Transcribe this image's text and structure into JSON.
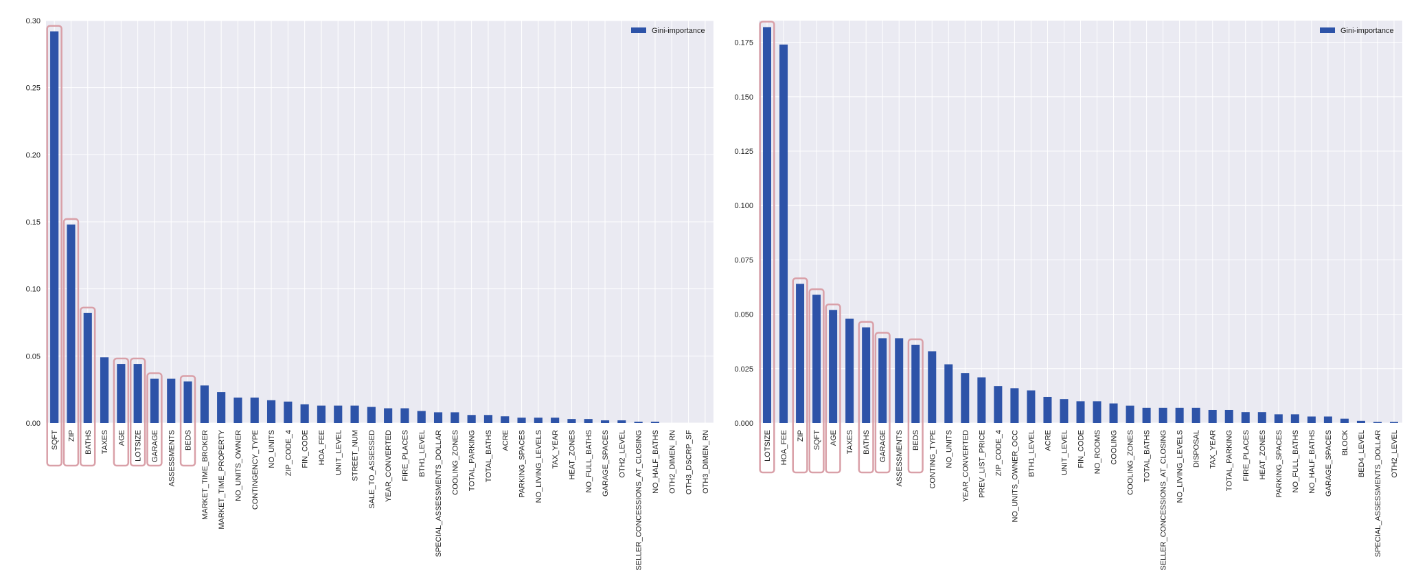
{
  "colors": {
    "plot_background": "#eaeaf2",
    "grid": "#ffffff",
    "bar": "#2d53a8",
    "highlight_box": "#d9a0a8"
  },
  "chart_data": [
    {
      "type": "bar",
      "legend": "Gini-importance",
      "legend_position": "top-right",
      "grid": true,
      "ylim": [
        0,
        0.3
      ],
      "yticks": [
        "0.00",
        "0.05",
        "0.10",
        "0.15",
        "0.20",
        "0.25",
        "0.30"
      ],
      "categories": [
        "SQFT",
        "ZIP",
        "BATHS",
        "TAXES",
        "AGE",
        "LOTSIZE",
        "GARAGE",
        "ASSESSMENTS",
        "BEDS",
        "MARKET_TIME_BROKER",
        "MARKET_TIME_PROPERTY",
        "NO_UNITS_OWNER",
        "CONTINGENCY_TYPE",
        "NO_UNITS",
        "ZIP_CODE_4",
        "FIN_CODE",
        "HOA_FEE",
        "UNIT_LEVEL",
        "STREET_NUM",
        "SALE_TO_ASSESSED",
        "YEAR_CONVERTED",
        "FIRE_PLACES",
        "BTH1_LEVEL",
        "SPECIAL_ASSESSMENTS_DOLLAR",
        "COOLING_ZONES",
        "TOTAL_PARKING",
        "TOTAL_BATHS",
        "ACRE",
        "PARKING_SPACES",
        "NO_LIVING_LEVELS",
        "TAX_YEAR",
        "HEAT_ZONES",
        "NO_FULL_BATHS",
        "GARAGE_SPACES",
        "OTH2_LEVEL",
        "SELLER_CONCESSIONS_AT_CLOSING",
        "NO_HALF_BATHS",
        "OTH2_DIMEN_RN",
        "OTH3_DSCRP_SF",
        "OTH3_DIMEN_RN"
      ],
      "values": [
        0.292,
        0.148,
        0.082,
        0.049,
        0.044,
        0.044,
        0.033,
        0.033,
        0.031,
        0.028,
        0.023,
        0.019,
        0.019,
        0.017,
        0.016,
        0.014,
        0.013,
        0.013,
        0.013,
        0.012,
        0.011,
        0.011,
        0.009,
        0.008,
        0.008,
        0.006,
        0.006,
        0.005,
        0.004,
        0.004,
        0.004,
        0.003,
        0.003,
        0.002,
        0.002,
        0.001,
        0.001,
        0.0,
        0.0,
        0.0
      ],
      "highlighted": [
        "SQFT",
        "ZIP",
        "BATHS",
        "AGE",
        "LOTSIZE",
        "GARAGE",
        "BEDS"
      ]
    },
    {
      "type": "bar",
      "legend": "Gini-importance",
      "legend_position": "top-right",
      "grid": true,
      "ylim": [
        0,
        0.185
      ],
      "yticks": [
        "0.000",
        "0.025",
        "0.050",
        "0.075",
        "0.100",
        "0.125",
        "0.150",
        "0.175"
      ],
      "categories": [
        "LOTSIZE",
        "HOA_FEE",
        "ZIP",
        "SQFT",
        "AGE",
        "TAXES",
        "BATHS",
        "GARAGE",
        "ASSESSMENTS",
        "BEDS",
        "CONTING_TYPE",
        "NO_UNITS",
        "YEAR_CONVERTED",
        "PREV_LIST_PRICE",
        "ZIP_CODE_4",
        "NO_UNITS_OWNER_OCC",
        "BTH1_LEVEL",
        "ACRE",
        "UNIT_LEVEL",
        "FIN_CODE",
        "NO_ROOMS",
        "COOLING",
        "COOLING_ZONES",
        "TOTAL_BATHS",
        "SELLER_CONCESSIONS_AT_CLOSING",
        "NO_LIVING_LEVELS",
        "DISPOSAL",
        "TAX_YEAR",
        "TOTAL_PARKING",
        "FIRE_PLACES",
        "HEAT_ZONES",
        "PARKING_SPACES",
        "NO_FULL_BATHS",
        "NO_HALF_BATHS",
        "GARAGE_SPACES",
        "BLOCK",
        "BED4_LEVEL",
        "SPECIAL_ASSESSMENTS_DOLLAR",
        "OTH2_LEVEL"
      ],
      "values": [
        0.182,
        0.174,
        0.064,
        0.059,
        0.052,
        0.048,
        0.044,
        0.039,
        0.039,
        0.036,
        0.033,
        0.027,
        0.023,
        0.021,
        0.017,
        0.016,
        0.015,
        0.012,
        0.011,
        0.01,
        0.01,
        0.009,
        0.008,
        0.007,
        0.007,
        0.007,
        0.007,
        0.006,
        0.006,
        0.005,
        0.005,
        0.004,
        0.004,
        0.003,
        0.003,
        0.002,
        0.001,
        0.0005,
        0.0005
      ],
      "highlighted": [
        "LOTSIZE",
        "ZIP",
        "SQFT",
        "AGE",
        "BATHS",
        "GARAGE",
        "BEDS"
      ]
    }
  ]
}
